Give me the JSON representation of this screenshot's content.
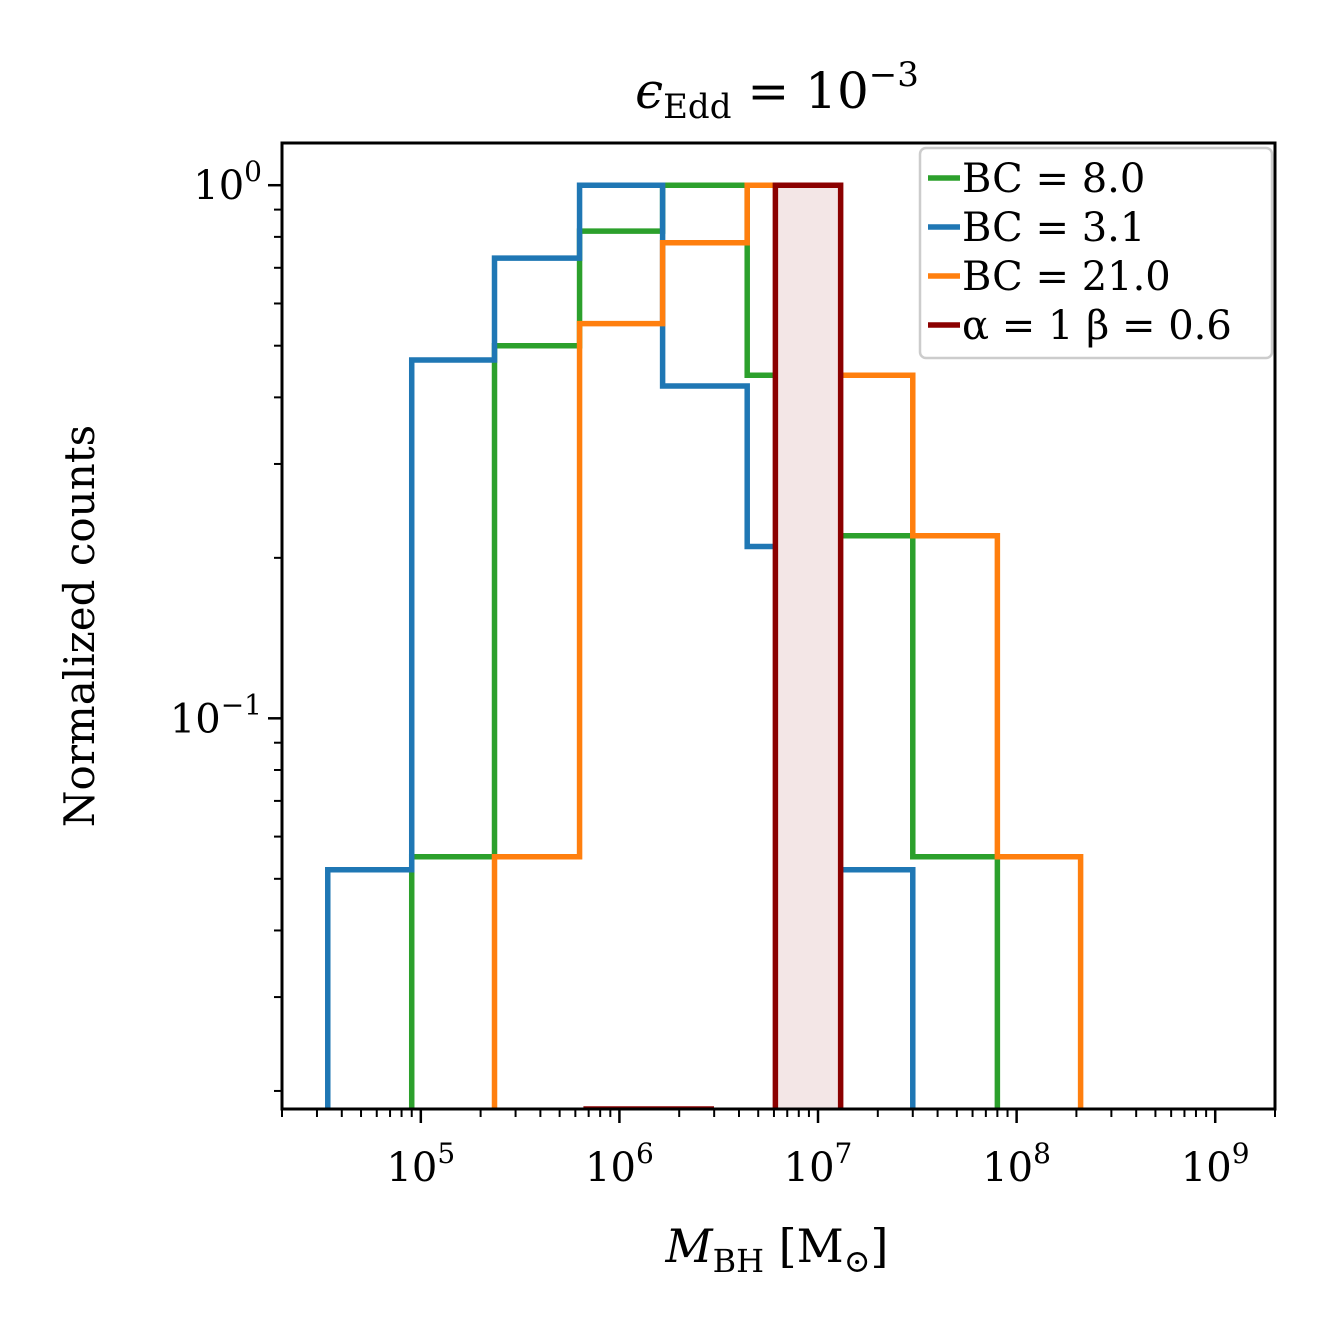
{
  "chart_data": {
    "type": "histogram",
    "title": {
      "main": "ϵ",
      "sub": "Edd",
      "rest": " = 10",
      "sup": "−3"
    },
    "xlabel": {
      "main": "M",
      "sub": "BH",
      "rest": " [M",
      "sub2": "⊙",
      "end": "]"
    },
    "ylabel": "Normalized counts",
    "xscale": "log",
    "yscale": "log",
    "xlim": [
      20000,
      2000000000
    ],
    "ylim": [
      0.0185,
      1.2
    ],
    "x_ticks": [
      {
        "value": 100000,
        "base": "10",
        "exp": "5"
      },
      {
        "value": 1000000,
        "base": "10",
        "exp": "6"
      },
      {
        "value": 10000000,
        "base": "10",
        "exp": "7"
      },
      {
        "value": 100000000,
        "base": "10",
        "exp": "8"
      },
      {
        "value": 1000000000,
        "base": "10",
        "exp": "9"
      }
    ],
    "y_ticks": [
      {
        "value": 1,
        "base": "10",
        "exp": "0"
      },
      {
        "value": 0.1,
        "base": "10",
        "exp": "−1"
      }
    ],
    "legend_position": "top-right",
    "series": [
      {
        "name": "BC = 8.0",
        "color": "#2ca02c",
        "style": "step",
        "bin_edges": [
          90000,
          235000,
          630000,
          1650000,
          4400000,
          11500000,
          30000000,
          80000000
        ],
        "values": [
          0.055,
          0.5,
          0.82,
          1.0,
          0.44,
          0.22,
          0.055
        ]
      },
      {
        "name": "BC = 3.1",
        "color": "#1f77b4",
        "style": "step",
        "bin_edges": [
          34000,
          90000,
          235000,
          630000,
          1650000,
          4400000,
          11500000,
          30000000
        ],
        "values": [
          0.052,
          0.47,
          0.73,
          1.0,
          0.42,
          0.21,
          0.052
        ]
      },
      {
        "name": "BC = 21.0",
        "color": "#ff7f0e",
        "style": "step",
        "bin_edges": [
          235000,
          630000,
          1650000,
          4400000,
          11500000,
          30000000,
          80000000,
          210000000
        ],
        "values": [
          0.055,
          0.55,
          0.78,
          1.0,
          0.44,
          0.22,
          0.055
        ]
      },
      {
        "name": "α = 1 β = 0.6",
        "color": "#8b0000",
        "style": "filled-step",
        "fill": "#f3e6e6",
        "segments": [
          {
            "bin_edges": [
              680000,
              2900000
            ],
            "values": [
              0.0185
            ]
          },
          {
            "bin_edges": [
              6100000,
              13000000
            ],
            "values": [
              1.0
            ]
          }
        ]
      }
    ],
    "legend_order": [
      "BC = 8.0",
      "BC = 3.1",
      "BC = 21.0",
      "α = 1 β = 0.6"
    ]
  }
}
